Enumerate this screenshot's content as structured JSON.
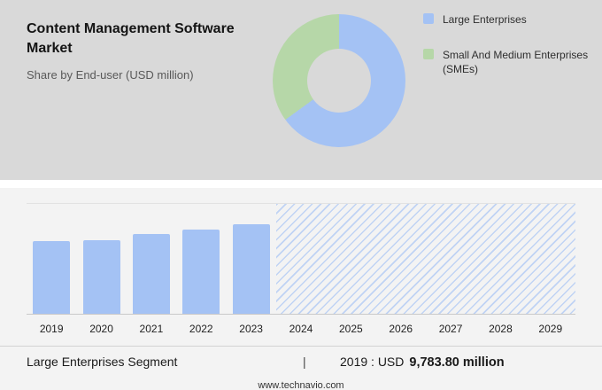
{
  "header": {
    "title": "Content Management Software Market",
    "subtitle": "Share by End-user (USD million)"
  },
  "legend": {
    "items": [
      {
        "label": "Large Enterprises",
        "color": "#a4c2f4"
      },
      {
        "label": "Small And Medium Enterprises (SMEs)",
        "color": "#b6d7a8"
      }
    ]
  },
  "footer": {
    "segment_label": "Large Enterprises Segment",
    "separator": "|",
    "value_prefix": "2019 : USD",
    "value_bold": "9,783.80 million",
    "website": "www.technavio.com"
  },
  "chart_data": [
    {
      "type": "pie",
      "subtype": "donut",
      "title": "Share by End-user (USD million)",
      "labels": [
        "Large Enterprises",
        "Small And Medium Enterprises (SMEs)"
      ],
      "values_percent_est": [
        65,
        35
      ],
      "colors": [
        "#a4c2f4",
        "#b6d7a8"
      ],
      "hole_color": "#d9d9d9",
      "legend_position": "right"
    },
    {
      "type": "bar",
      "categories": [
        "2019",
        "2020",
        "2021",
        "2022",
        "2023",
        "2024",
        "2025",
        "2026",
        "2027",
        "2028",
        "2029"
      ],
      "values": [
        9783.8,
        9900,
        10740,
        11330,
        12050,
        null,
        null,
        null,
        null,
        null,
        null
      ],
      "values_note": "2019 value labeled on image as USD 9,783.80 million; 2020-2023 estimated from bar heights; 2024-2029 shown only as hatched forecast region",
      "forecast_categories": [
        "2024",
        "2025",
        "2026",
        "2027",
        "2028",
        "2029"
      ],
      "bar_color": "#a4c2f4",
      "xlabel": "",
      "ylabel": "",
      "grid": false
    }
  ]
}
